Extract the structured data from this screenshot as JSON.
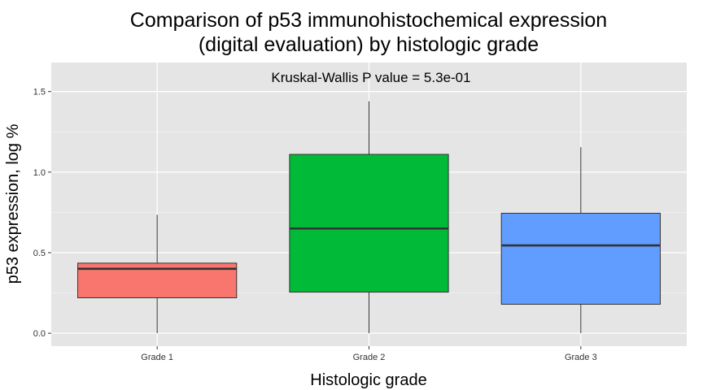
{
  "chart_data": {
    "type": "boxplot",
    "title_line1": "Comparison of p53 immunohistochemical expression",
    "title_line2": "(digital evaluation) by histologic grade",
    "annotation": "Kruskal-Wallis P value = 5.3e-01",
    "xlabel": "Histologic grade",
    "ylabel": "p53 expression, log %",
    "ylim": [
      -0.08,
      1.68
    ],
    "y_ticks": [
      0.0,
      0.5,
      1.0,
      1.5
    ],
    "y_tick_labels": [
      "0.0",
      "0.5",
      "1.0",
      "1.5"
    ],
    "grid": true,
    "legend": "none",
    "categories": [
      "Grade 1",
      "Grade 2",
      "Grade 3"
    ],
    "boxes": [
      {
        "category": "Grade 1",
        "whisker_low": 0.0,
        "q1": 0.22,
        "median": 0.4,
        "q3": 0.435,
        "whisker_high": 0.735,
        "color": "#F8766D"
      },
      {
        "category": "Grade 2",
        "whisker_low": 0.0,
        "q1": 0.255,
        "median": 0.65,
        "q3": 1.11,
        "whisker_high": 1.44,
        "color": "#00BA38"
      },
      {
        "category": "Grade 3",
        "whisker_low": 0.0,
        "q1": 0.18,
        "median": 0.545,
        "q3": 0.745,
        "whisker_high": 1.155,
        "color": "#619CFF"
      }
    ],
    "panel_background": "#E5E5E5",
    "grid_color": "#FFFFFF",
    "box_outline": "#333333"
  }
}
